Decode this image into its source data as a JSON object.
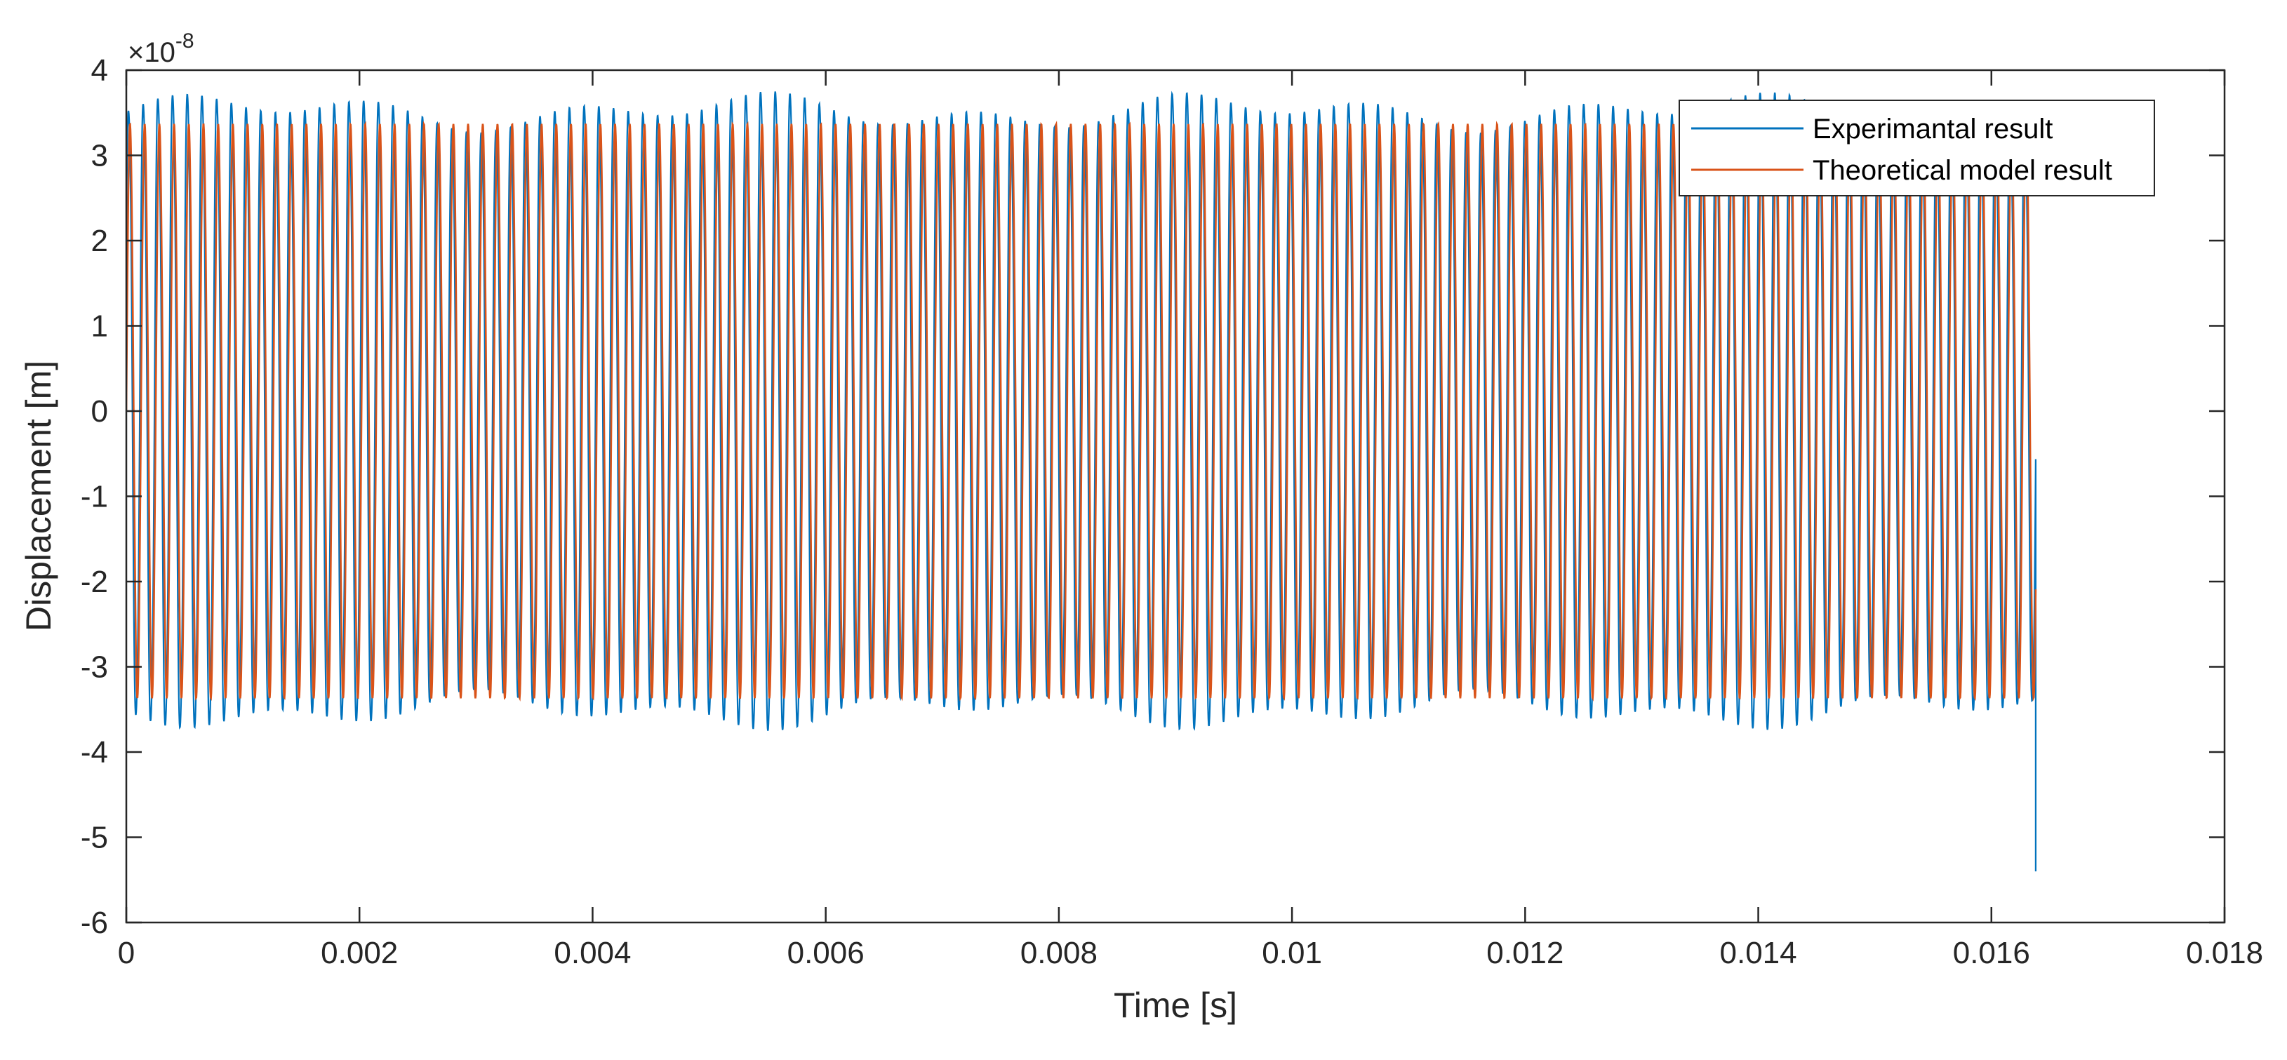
{
  "chart_data": {
    "type": "line",
    "xlabel": "Time [s]",
    "ylabel": "Displacement [m]",
    "y_exponent": {
      "base": "×10",
      "power": "-8"
    },
    "xlim": [
      0,
      0.018
    ],
    "ylim": [
      -6,
      4
    ],
    "x_ticks": [
      0,
      0.002,
      0.004,
      0.006,
      0.008,
      0.01,
      0.012,
      0.014,
      0.016,
      0.018
    ],
    "x_tick_labels": [
      "0",
      "0.002",
      "0.004",
      "0.006",
      "0.008",
      "0.01",
      "0.012",
      "0.014",
      "0.016",
      "0.018"
    ],
    "y_ticks": [
      -6,
      -5,
      -4,
      -3,
      -2,
      -1,
      0,
      1,
      2,
      3,
      4
    ],
    "y_tick_labels": [
      "-6",
      "-5",
      "-4",
      "-3",
      "-2",
      "-1",
      "0",
      "1",
      "2",
      "3",
      "4"
    ],
    "grid": false,
    "legend_position": "top-right",
    "series": [
      {
        "name": "Experimantal result",
        "color": "#0072bd",
        "x_range": [
          0,
          0.01638
        ],
        "frequency_hz": 7930,
        "amplitude_range": [
          3.4,
          3.9
        ],
        "final_value": -5.4
      },
      {
        "name": "Theoretical model result",
        "color": "#d95319",
        "x_range": [
          0,
          0.01638
        ],
        "frequency_hz": 7930,
        "amplitude": 3.37
      }
    ]
  }
}
